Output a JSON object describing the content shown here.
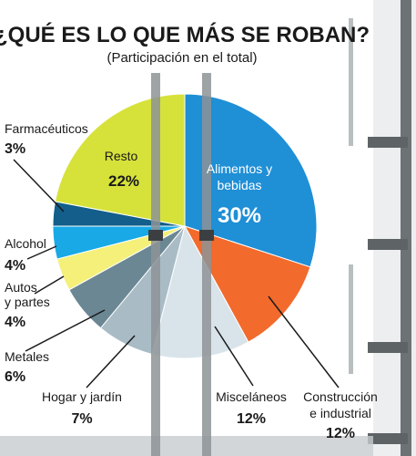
{
  "chart_data": {
    "type": "pie",
    "title": "¿QUÉ ES LO QUE MÁS SE ROBAN?",
    "subtitle": "(Participación en el total)",
    "start_angle_deg": 0,
    "direction": "clockwise",
    "slices": [
      {
        "label": "Alimentos y bebidas",
        "value": 30,
        "value_label": "30%",
        "color": "#1f8fd6"
      },
      {
        "label": "Construcción e industrial",
        "value": 12,
        "value_label": "12%",
        "color": "#f26a2c"
      },
      {
        "label": "Misceláneos",
        "value": 12,
        "value_label": "12%",
        "color": "#d9e4ea"
      },
      {
        "label": "Hogar y jardín",
        "value": 7,
        "value_label": "7%",
        "color": "#a9bcc6"
      },
      {
        "label": "Metales",
        "value": 6,
        "value_label": "6%",
        "color": "#6b8794"
      },
      {
        "label": "Autos y partes",
        "value": 4,
        "value_label": "4%",
        "color": "#f4f07a"
      },
      {
        "label": "Alcohol",
        "value": 4,
        "value_label": "4%",
        "color": "#18a9e6"
      },
      {
        "label": "Farmacéuticos",
        "value": 3,
        "value_label": "3%",
        "color": "#135e8a"
      },
      {
        "label": "Resto",
        "value": 22,
        "value_label": "22%",
        "color": "#d6e23a"
      }
    ]
  },
  "labels": {
    "alimentos_l1": "Alimentos y",
    "alimentos_l2": "bebidas",
    "construccion_l1": "Construcción",
    "construccion_l2": "e industrial",
    "miscelaneos": "Misceláneos",
    "hogar": "Hogar y jardín",
    "metales": "Metales",
    "autos_l1": "Autos",
    "autos_l2": "y partes",
    "alcohol": "Alcohol",
    "farmaceuticos": "Farmacéuticos",
    "resto": "Resto"
  }
}
